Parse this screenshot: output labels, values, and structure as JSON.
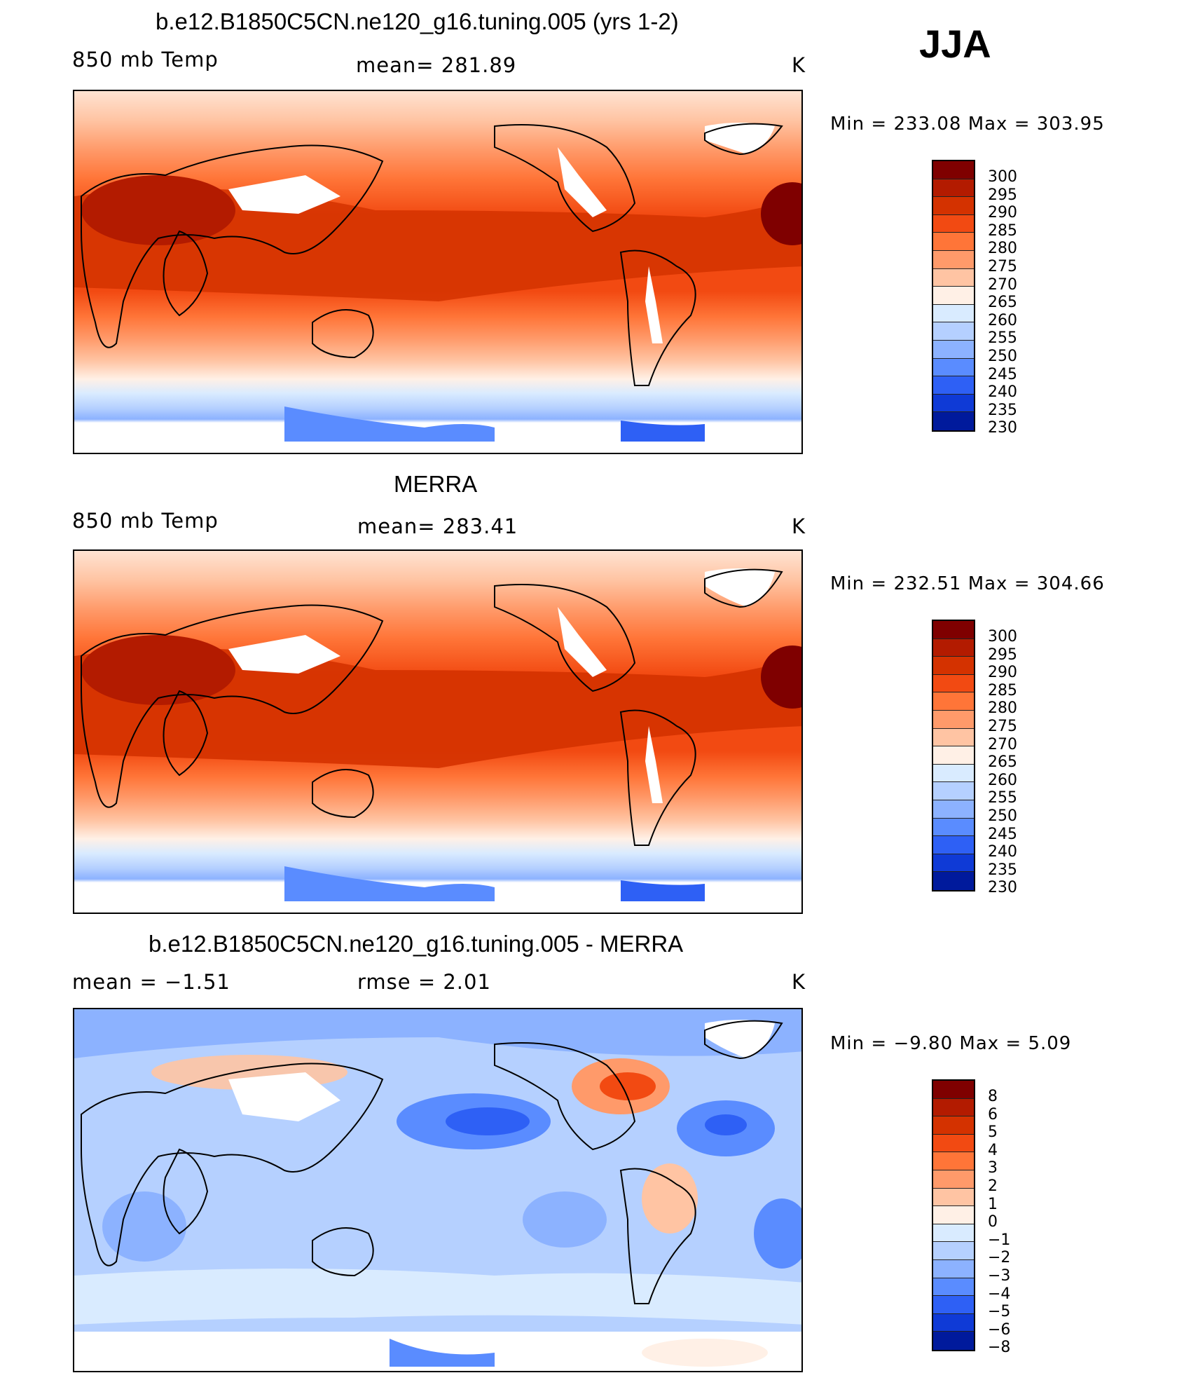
{
  "season": "JJA",
  "units_label": "K",
  "panels": [
    {
      "id": "model",
      "title": "b.e12.B1850C5CN.ne120_g16.tuning.005 (yrs 1-2)",
      "left_label": "850 mb Temp",
      "center_label": "mean=  281.89",
      "right_label": "K",
      "min_max": "Min  =  233.08  Max  =  303.95",
      "colorbar_labels": [
        "300",
        "295",
        "290",
        "285",
        "280",
        "275",
        "270",
        "265",
        "260",
        "255",
        "250",
        "245",
        "240",
        "235",
        "230"
      ],
      "colorbar_colors": [
        "#7f0000",
        "#b31b00",
        "#d43200",
        "#f24a12",
        "#ff7538",
        "#ff9a6a",
        "#ffc4a3",
        "#fff0e6",
        "#d9ebff",
        "#b5d0ff",
        "#8cb2ff",
        "#5a8cff",
        "#2e60f5",
        "#0f3ad6",
        "#001a9c"
      ]
    },
    {
      "id": "obs",
      "title": "MERRA",
      "left_label": "850 mb Temp",
      "center_label": "mean=  283.41",
      "right_label": "K",
      "min_max": "Min  =  232.51  Max  =  304.66",
      "colorbar_labels": [
        "300",
        "295",
        "290",
        "285",
        "280",
        "275",
        "270",
        "265",
        "260",
        "255",
        "250",
        "245",
        "240",
        "235",
        "230"
      ],
      "colorbar_colors": [
        "#7f0000",
        "#b31b00",
        "#d43200",
        "#f24a12",
        "#ff7538",
        "#ff9a6a",
        "#ffc4a3",
        "#fff0e6",
        "#d9ebff",
        "#b5d0ff",
        "#8cb2ff",
        "#5a8cff",
        "#2e60f5",
        "#0f3ad6",
        "#001a9c"
      ]
    },
    {
      "id": "diff",
      "title": "b.e12.B1850C5CN.ne120_g16.tuning.005 - MERRA",
      "left_label": "mean  =    −1.51",
      "center_label": "rmse  =     2.01",
      "right_label": "K",
      "min_max": "Min  =    −9.80  Max  =      5.09",
      "colorbar_labels": [
        "8",
        "6",
        "5",
        "4",
        "3",
        "2",
        "1",
        "0",
        "−1",
        "−2",
        "−3",
        "−4",
        "−5",
        "−6",
        "−8"
      ],
      "colorbar_colors": [
        "#7f0000",
        "#b31b00",
        "#d43200",
        "#f24a12",
        "#ff7538",
        "#ff9a6a",
        "#ffc4a3",
        "#fff0e6",
        "#d9ebff",
        "#b5d0ff",
        "#8cb2ff",
        "#5a8cff",
        "#2e60f5",
        "#0f3ad6",
        "#001a9c"
      ]
    }
  ]
}
